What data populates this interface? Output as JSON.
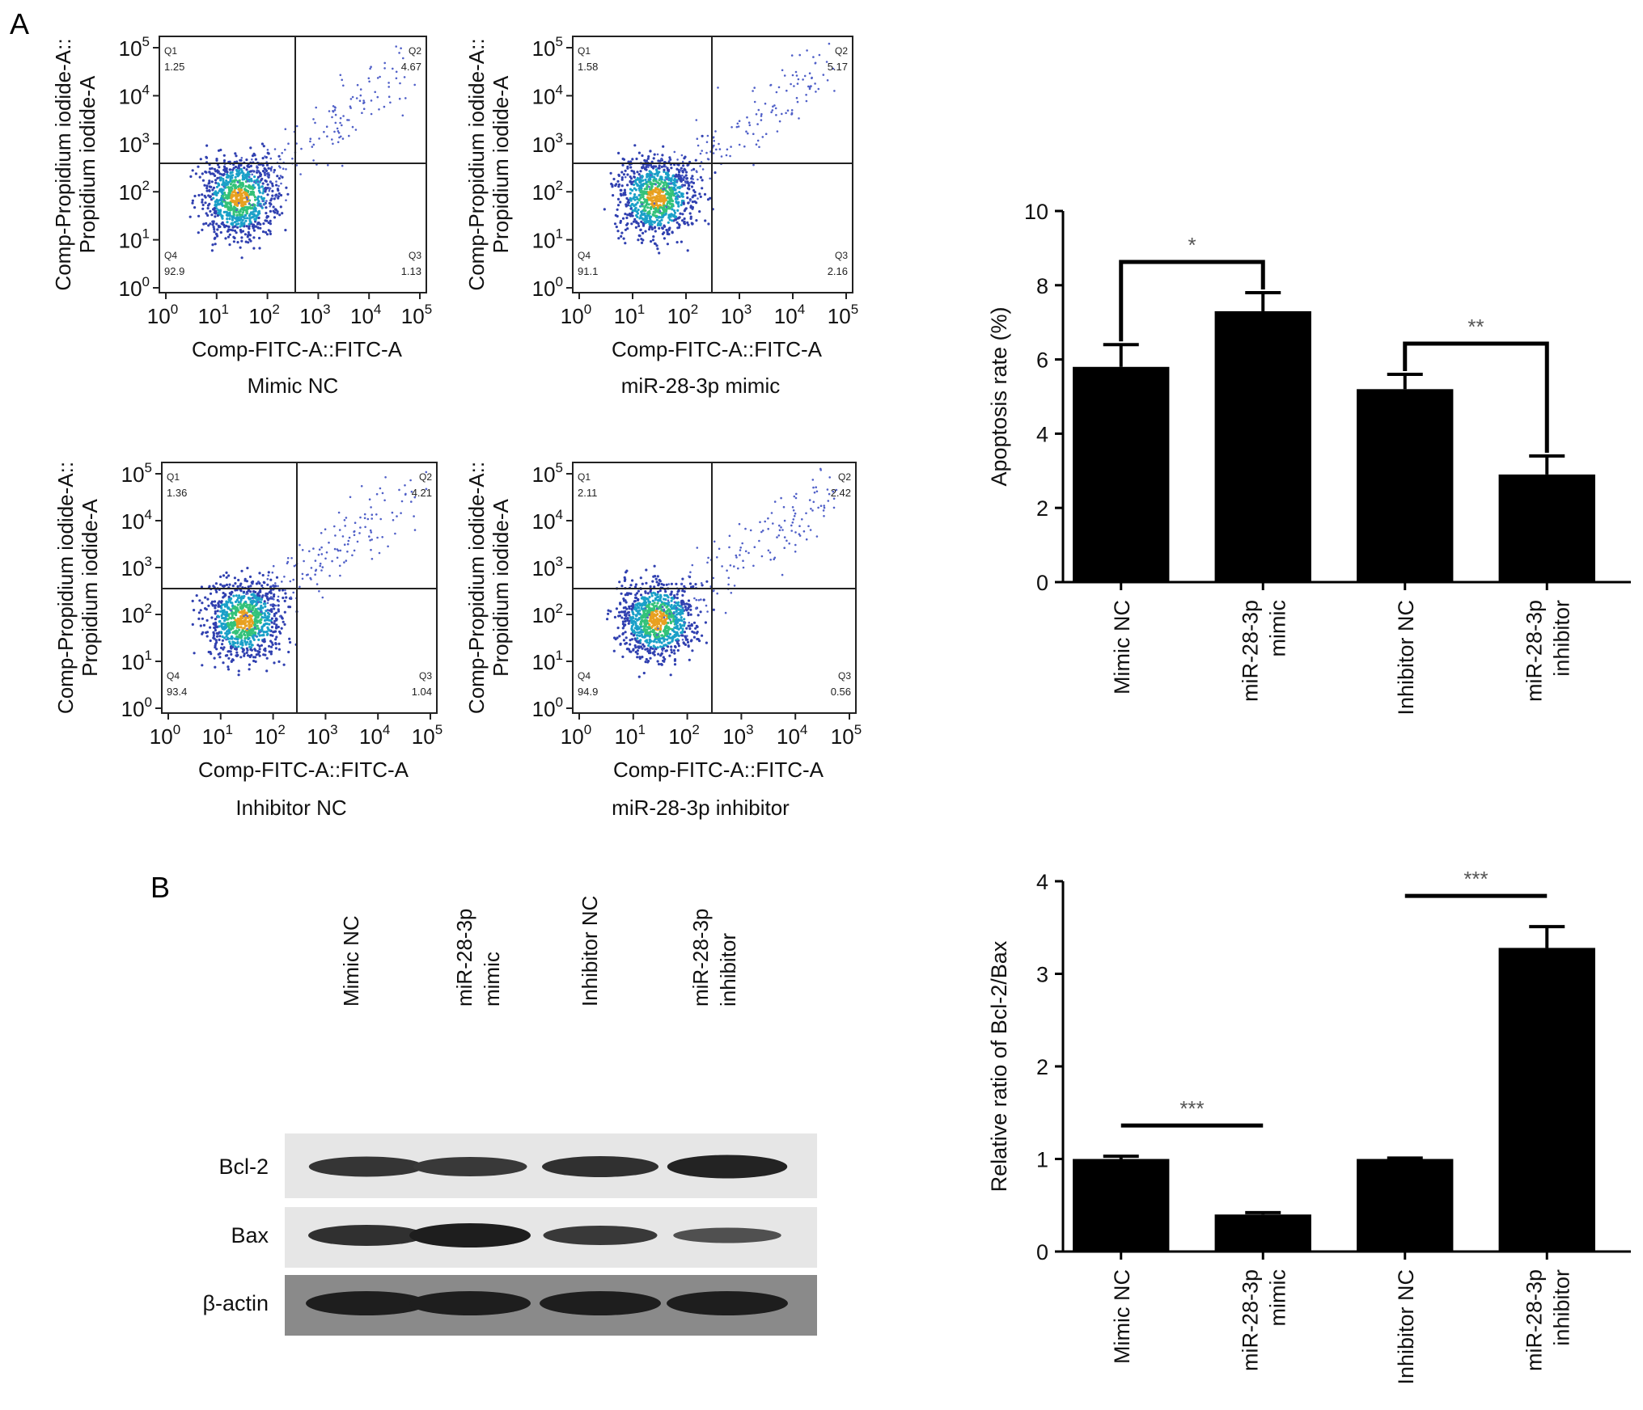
{
  "panels": {
    "A": "A",
    "B": "B"
  },
  "flow": {
    "ylabel_line1": "Comp-Propidium iodide-A::",
    "ylabel_line2": "Propidium iodide-A",
    "xlabel": "Comp-FITC-A::FITC-A",
    "tick_base": "10",
    "tick_exponents": [
      "0",
      "1",
      "2",
      "3",
      "4",
      "5"
    ],
    "plots": [
      {
        "title": "Mimic NC",
        "quadrants": [
          {
            "name": "Q1",
            "value": "1.25"
          },
          {
            "name": "Q2",
            "value": "4.67"
          },
          {
            "name": "Q3",
            "value": "1.13"
          },
          {
            "name": "Q4",
            "value": "92.9"
          }
        ]
      },
      {
        "title": "miR-28-3p mimic",
        "quadrants": [
          {
            "name": "Q1",
            "value": "1.58"
          },
          {
            "name": "Q2",
            "value": "5.17"
          },
          {
            "name": "Q3",
            "value": "2.16"
          },
          {
            "name": "Q4",
            "value": "91.1"
          }
        ]
      },
      {
        "title": "Inhibitor NC",
        "quadrants": [
          {
            "name": "Q1",
            "value": "1.36"
          },
          {
            "name": "Q2",
            "value": "4.21"
          },
          {
            "name": "Q3",
            "value": "1.04"
          },
          {
            "name": "Q4",
            "value": "93.4"
          }
        ]
      },
      {
        "title": "miR-28-3p inhibitor",
        "quadrants": [
          {
            "name": "Q1",
            "value": "2.11"
          },
          {
            "name": "Q2",
            "value": "2.42"
          },
          {
            "name": "Q3",
            "value": "0.56"
          },
          {
            "name": "Q4",
            "value": "94.9"
          }
        ]
      }
    ]
  },
  "western": {
    "lanes": [
      [
        "Mimic NC"
      ],
      [
        "miR-28-3p",
        "mimic"
      ],
      [
        "Inhibitor NC"
      ],
      [
        "miR-28-3p",
        "inhibitor"
      ]
    ],
    "rows": [
      "Bcl-2",
      "Bax",
      "β-actin"
    ],
    "intensity": {
      "Bcl-2": [
        0.75,
        0.7,
        0.8,
        0.95
      ],
      "Bax": [
        0.8,
        1.0,
        0.7,
        0.45
      ],
      "β-actin": [
        1.0,
        1.0,
        1.0,
        1.0
      ]
    }
  },
  "chart_data": [
    {
      "type": "bar",
      "ylabel": "Apoptosis rate (%)",
      "ylim": [
        0,
        10
      ],
      "yticks": [
        "0",
        "2",
        "4",
        "6",
        "8",
        "10"
      ],
      "categories": [
        [
          "Mimic NC"
        ],
        [
          "miR-28-3p",
          "mimic"
        ],
        [
          "Inhibitor NC"
        ],
        [
          "miR-28-3p",
          "inhibitor"
        ]
      ],
      "values": [
        5.8,
        7.3,
        5.2,
        2.9
      ],
      "errors": [
        0.6,
        0.5,
        0.4,
        0.5
      ],
      "comparisons": [
        {
          "from": 0,
          "to": 1,
          "label": "*",
          "style": "bracket-down"
        },
        {
          "from": 2,
          "to": 3,
          "label": "**",
          "style": "bracket-down"
        }
      ]
    },
    {
      "type": "bar",
      "ylabel": "Relative ratio of Bcl-2/Bax",
      "ylim": [
        0,
        4
      ],
      "yticks": [
        "0",
        "1",
        "2",
        "3",
        "4"
      ],
      "categories": [
        [
          "Mimic NC"
        ],
        [
          "miR-28-3p",
          "mimic"
        ],
        [
          "Inhibitor NC"
        ],
        [
          "miR-28-3p",
          "inhibitor"
        ]
      ],
      "values": [
        1.0,
        0.4,
        1.0,
        3.28
      ],
      "errors": [
        0.03,
        0.02,
        0.01,
        0.23
      ],
      "comparisons": [
        {
          "from": 0,
          "to": 1,
          "label": "***",
          "style": "line"
        },
        {
          "from": 2,
          "to": 3,
          "label": "***",
          "style": "line"
        }
      ]
    }
  ]
}
